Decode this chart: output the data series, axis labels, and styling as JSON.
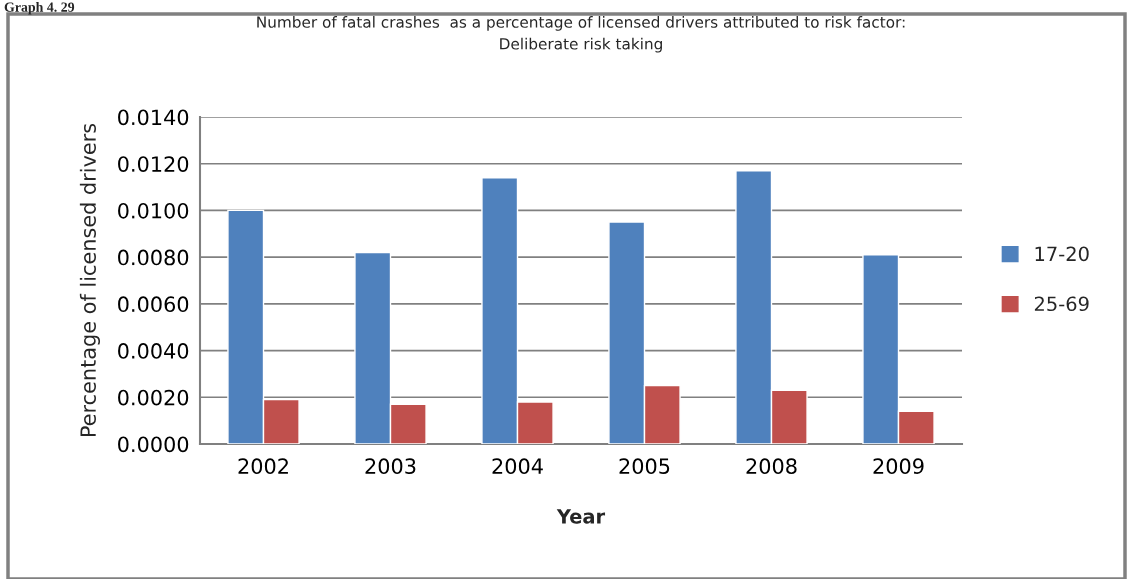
{
  "chart_data": {
    "type": "bar",
    "title": "Number of fatal crashes  as a percentage of licensed drivers attributed to risk factor:\nDeliberate risk taking",
    "xlabel": "Year",
    "ylabel": "Percentage of licensed drivers",
    "annotations": [
      "Graph 4. 29"
    ],
    "categories": [
      "2002",
      "2003",
      "2004",
      "2005",
      "2008",
      "2009"
    ],
    "series": [
      {
        "name": "17-20",
        "color": "#4f81bd",
        "values": [
          0.01,
          0.0082,
          0.0114,
          0.0095,
          0.0117,
          0.0081
        ]
      },
      {
        "name": "25-69",
        "color": "#c0504d",
        "values": [
          0.0019,
          0.0017,
          0.0018,
          0.0025,
          0.0023,
          0.0014
        ]
      }
    ],
    "ylim": [
      0,
      0.014
    ],
    "yticks": [
      {
        "value": 0,
        "label": "0.0000"
      },
      {
        "value": 0.002,
        "label": "0.0020"
      },
      {
        "value": 0.004,
        "label": "0.0040"
      },
      {
        "value": 0.006,
        "label": "0.0060"
      },
      {
        "value": 0.008,
        "label": "0.0080"
      },
      {
        "value": 0.01,
        "label": "0.0100"
      },
      {
        "value": 0.012,
        "label": "0.0120"
      },
      {
        "value": 0.014,
        "label": "0.0140"
      }
    ],
    "grid": "y",
    "legend": "right"
  }
}
